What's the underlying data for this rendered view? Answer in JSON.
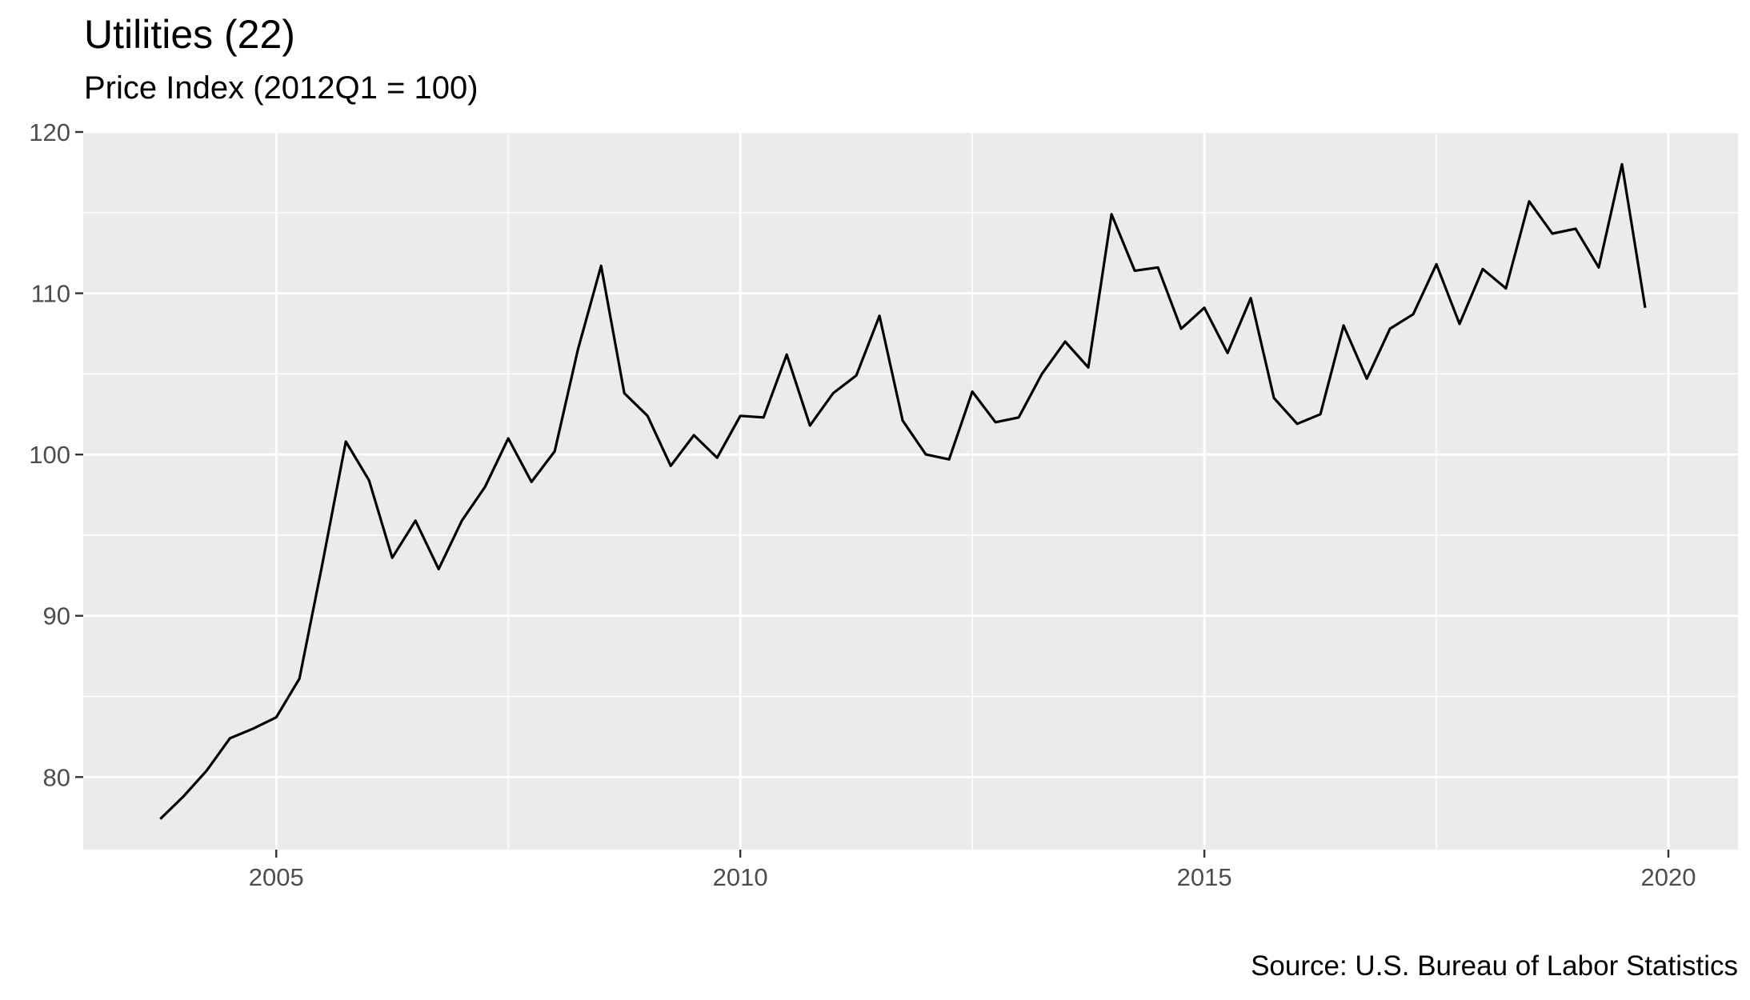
{
  "chart_data": {
    "type": "line",
    "title": "Utilities (22)",
    "subtitle": "Price Index (2012Q1 = 100)",
    "caption": "Source: U.S. Bureau of Labor Statistics",
    "xlabel": "",
    "ylabel": "",
    "xlim": [
      2002.92,
      2020.75
    ],
    "ylim": [
      75.5,
      120
    ],
    "x_ticks": [
      2005,
      2010,
      2015,
      2020
    ],
    "x_tick_labels": [
      "2005",
      "2010",
      "2015",
      "2020"
    ],
    "y_ticks": [
      80,
      90,
      100,
      110,
      120
    ],
    "y_tick_labels": [
      "80",
      "90",
      "100",
      "110",
      "120"
    ],
    "grid": true,
    "background": "#ebebeb",
    "line_color": "#000000",
    "series": [
      {
        "x": [
          2003.75,
          2004.0,
          2004.25,
          2004.5,
          2004.75,
          2005.0,
          2005.25,
          2005.5,
          2005.75,
          2006.0,
          2006.25,
          2006.5,
          2006.75,
          2007.0,
          2007.25,
          2007.5,
          2007.75,
          2008.0,
          2008.25,
          2008.5,
          2008.75,
          2009.0,
          2009.25,
          2009.5,
          2009.75,
          2010.0,
          2010.25,
          2010.5,
          2010.75,
          2011.0,
          2011.25,
          2011.5,
          2011.75,
          2012.0,
          2012.25,
          2012.5,
          2012.75,
          2013.0,
          2013.25,
          2013.5,
          2013.75,
          2014.0,
          2014.25,
          2014.5,
          2014.75,
          2015.0,
          2015.25,
          2015.5,
          2015.75,
          2016.0,
          2016.25,
          2016.5,
          2016.75,
          2017.0,
          2017.25,
          2017.5,
          2017.75,
          2018.0,
          2018.25,
          2018.5,
          2018.75,
          2019.0,
          2019.25,
          2019.5,
          2019.75
        ],
        "values": [
          77.4,
          78.8,
          80.4,
          82.4,
          83.0,
          83.7,
          86.1,
          93.3,
          100.8,
          98.4,
          93.6,
          95.9,
          92.9,
          95.9,
          98.0,
          101.0,
          98.3,
          100.2,
          106.5,
          111.7,
          103.8,
          102.4,
          99.3,
          101.2,
          99.8,
          102.4,
          102.3,
          106.2,
          101.8,
          103.8,
          104.9,
          108.6,
          102.1,
          100.0,
          99.7,
          103.9,
          102.0,
          102.3,
          105.0,
          107.0,
          105.4,
          114.9,
          111.4,
          111.6,
          107.8,
          109.1,
          106.3,
          109.7,
          103.5,
          101.9,
          102.5,
          108.0,
          104.7,
          107.8,
          108.7,
          111.8,
          108.1,
          111.5,
          110.3,
          115.7,
          113.7,
          114.0,
          111.6,
          118.0,
          109.1
        ]
      }
    ]
  }
}
